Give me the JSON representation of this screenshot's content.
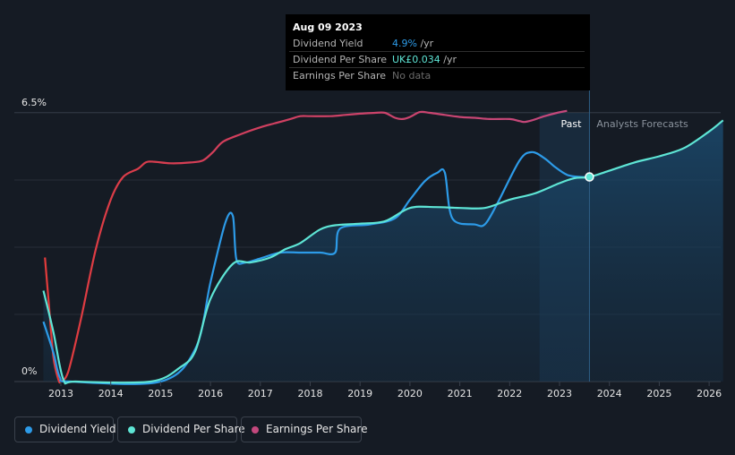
{
  "tooltip": {
    "date": "Aug 09 2023",
    "rows": [
      {
        "label": "Dividend Yield",
        "value": "4.9%",
        "unit": " /yr",
        "color": "#2d9be8"
      },
      {
        "label": "Dividend Per Share",
        "value": "UK£0.034",
        "unit": " /yr",
        "color": "#5ee5d5"
      },
      {
        "label": "Earnings Per Share",
        "value": "No data",
        "unit": "",
        "color": "#6b6b6b"
      }
    ]
  },
  "chart_data": {
    "type": "line",
    "y_top_label": "6.5%",
    "y_bottom_label": "0%",
    "ylim": [
      0,
      6.5
    ],
    "xlim": [
      2012.45,
      2026.28
    ],
    "x_ticks": [
      "2013",
      "2014",
      "2015",
      "2016",
      "2017",
      "2018",
      "2019",
      "2020",
      "2021",
      "2022",
      "2023",
      "2024",
      "2025",
      "2026"
    ],
    "past_label": "Past",
    "forecast_label": "Analysts Forecasts",
    "past_end": 2023.6,
    "past_shade_start": 2022.6,
    "series": [
      {
        "name": "Dividend Yield",
        "color": "#2d9be8",
        "points": [
          [
            2012.65,
            1.45
          ],
          [
            2012.85,
            0.7
          ],
          [
            2012.98,
            0.1
          ],
          [
            2013.2,
            0
          ],
          [
            2015.0,
            0
          ],
          [
            2015.7,
            0.8
          ],
          [
            2016.0,
            2.4
          ],
          [
            2016.3,
            3.85
          ],
          [
            2016.45,
            4.0
          ],
          [
            2016.52,
            2.95
          ],
          [
            2016.7,
            2.88
          ],
          [
            2017.0,
            2.98
          ],
          [
            2017.4,
            3.12
          ],
          [
            2017.8,
            3.12
          ],
          [
            2018.2,
            3.12
          ],
          [
            2018.5,
            3.12
          ],
          [
            2018.6,
            3.7
          ],
          [
            2019.2,
            3.8
          ],
          [
            2019.7,
            3.95
          ],
          [
            2020.0,
            4.4
          ],
          [
            2020.3,
            4.85
          ],
          [
            2020.55,
            5.05
          ],
          [
            2020.7,
            5.05
          ],
          [
            2020.85,
            3.95
          ],
          [
            2021.3,
            3.8
          ],
          [
            2021.5,
            3.8
          ],
          [
            2021.75,
            4.3
          ],
          [
            2022.2,
            5.35
          ],
          [
            2022.45,
            5.55
          ],
          [
            2022.7,
            5.4
          ],
          [
            2022.9,
            5.2
          ],
          [
            2023.15,
            5.0
          ],
          [
            2023.4,
            4.95
          ],
          [
            2023.6,
            4.95
          ]
        ]
      },
      {
        "name": "Dividend Per Share",
        "color": "#5ee5d5",
        "points": [
          [
            2012.65,
            2.2
          ],
          [
            2012.85,
            1.2
          ],
          [
            2013.05,
            0.05
          ],
          [
            2013.3,
            0
          ],
          [
            2014.8,
            0
          ],
          [
            2015.4,
            0.35
          ],
          [
            2015.7,
            0.75
          ],
          [
            2016.0,
            2.0
          ],
          [
            2016.45,
            2.85
          ],
          [
            2016.8,
            2.88
          ],
          [
            2017.2,
            3.0
          ],
          [
            2017.5,
            3.2
          ],
          [
            2017.8,
            3.35
          ],
          [
            2018.2,
            3.68
          ],
          [
            2018.5,
            3.78
          ],
          [
            2019.0,
            3.82
          ],
          [
            2019.5,
            3.88
          ],
          [
            2020.0,
            4.2
          ],
          [
            2020.5,
            4.22
          ],
          [
            2021.0,
            4.2
          ],
          [
            2021.5,
            4.2
          ],
          [
            2022.0,
            4.4
          ],
          [
            2022.5,
            4.55
          ],
          [
            2023.0,
            4.8
          ],
          [
            2023.3,
            4.92
          ],
          [
            2023.6,
            4.95
          ],
          [
            2024.0,
            5.1
          ],
          [
            2024.5,
            5.3
          ],
          [
            2025.0,
            5.45
          ],
          [
            2025.5,
            5.65
          ],
          [
            2026.0,
            6.05
          ],
          [
            2026.28,
            6.32
          ]
        ]
      },
      {
        "name": "Earnings Per Share",
        "color_start": "#e13a3a",
        "color_end": "#c3487d",
        "points": [
          [
            2012.68,
            3.0
          ],
          [
            2012.75,
            2.0
          ],
          [
            2012.85,
            0.6
          ],
          [
            2012.95,
            0.05
          ],
          [
            2013.0,
            0
          ],
          [
            2013.15,
            0.25
          ],
          [
            2013.4,
            1.5
          ],
          [
            2013.7,
            3.2
          ],
          [
            2014.0,
            4.4
          ],
          [
            2014.25,
            4.95
          ],
          [
            2014.55,
            5.15
          ],
          [
            2014.7,
            5.3
          ],
          [
            2014.85,
            5.32
          ],
          [
            2015.2,
            5.28
          ],
          [
            2015.6,
            5.3
          ],
          [
            2015.85,
            5.35
          ],
          [
            2016.05,
            5.55
          ],
          [
            2016.25,
            5.8
          ],
          [
            2016.6,
            5.98
          ],
          [
            2017.0,
            6.15
          ],
          [
            2017.3,
            6.25
          ],
          [
            2017.6,
            6.35
          ],
          [
            2017.8,
            6.42
          ],
          [
            2018.0,
            6.42
          ],
          [
            2018.4,
            6.42
          ],
          [
            2018.7,
            6.45
          ],
          [
            2019.0,
            6.48
          ],
          [
            2019.3,
            6.5
          ],
          [
            2019.5,
            6.5
          ],
          [
            2019.7,
            6.38
          ],
          [
            2019.85,
            6.35
          ],
          [
            2020.0,
            6.4
          ],
          [
            2020.2,
            6.52
          ],
          [
            2020.4,
            6.5
          ],
          [
            2020.7,
            6.45
          ],
          [
            2021.0,
            6.4
          ],
          [
            2021.3,
            6.38
          ],
          [
            2021.6,
            6.35
          ],
          [
            2022.0,
            6.35
          ],
          [
            2022.2,
            6.3
          ],
          [
            2022.3,
            6.28
          ],
          [
            2022.45,
            6.32
          ],
          [
            2022.7,
            6.42
          ],
          [
            2022.95,
            6.5
          ],
          [
            2023.15,
            6.55
          ]
        ]
      }
    ],
    "highlight_point": {
      "x": 2023.6,
      "y": 4.95
    }
  },
  "legend": [
    {
      "label": "Dividend Yield",
      "color": "#2d9be8"
    },
    {
      "label": "Dividend Per Share",
      "color": "#5ee5d5"
    },
    {
      "label": "Earnings Per Share",
      "color": "#c3487d"
    }
  ]
}
